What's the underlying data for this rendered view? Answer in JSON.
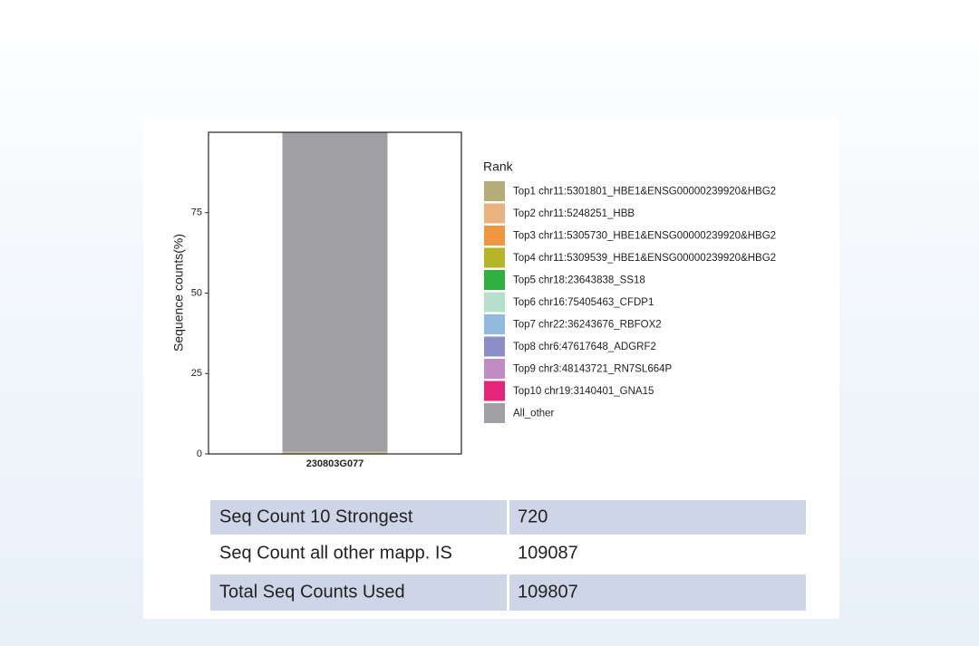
{
  "chart_data": {
    "type": "stacked_bar",
    "y_label": "Sequence counts(%)",
    "legend_title": "Rank",
    "categories": [
      "230803G077"
    ],
    "ylim": [
      0,
      100
    ],
    "yticks": [
      0,
      25,
      50,
      75
    ],
    "series": [
      {
        "name": "Top1 chr11:5301801_HBE1&ENSG00000239920&HBG2",
        "color": "#b5ad78",
        "values": [
          0.25
        ]
      },
      {
        "name": "Top2 chr11:5248251_HBB",
        "color": "#e8b37f",
        "values": [
          0.1
        ]
      },
      {
        "name": "Top3 chr11:5305730_HBE1&ENSG00000239920&HBG2",
        "color": "#f0963e",
        "values": [
          0.08
        ]
      },
      {
        "name": "Top4 chr11:5309539_HBE1&ENSG00000239920&HBG2",
        "color": "#b5b526",
        "values": [
          0.06
        ]
      },
      {
        "name": "Top5 chr18:23643838_SS18",
        "color": "#2fb040",
        "values": [
          0.05
        ]
      },
      {
        "name": "Top6 chr16:75405463_CFDP1",
        "color": "#b4e0cc",
        "values": [
          0.04
        ]
      },
      {
        "name": "Top7 chr22:36243676_RBFOX2",
        "color": "#92b9e0",
        "values": [
          0.03
        ]
      },
      {
        "name": "Top8 chr6:47617648_ADGRF2",
        "color": "#8c8ec4",
        "values": [
          0.02
        ]
      },
      {
        "name": "Top9 chr3:48143721_RN7SL664P",
        "color": "#c08cc4",
        "values": [
          0.02
        ]
      },
      {
        "name": "Top10 chr19:3140401_GNA15",
        "color": "#e6267a",
        "values": [
          0.01
        ]
      },
      {
        "name": "All_other",
        "color": "#a0a0a4",
        "values": [
          99.34
        ]
      }
    ]
  },
  "table": {
    "rows": [
      [
        "Seq Count 10 Strongest",
        720
      ],
      [
        "Seq Count all other mapp. IS",
        109087
      ],
      [
        "Total Seq Counts Used",
        109807
      ]
    ]
  }
}
